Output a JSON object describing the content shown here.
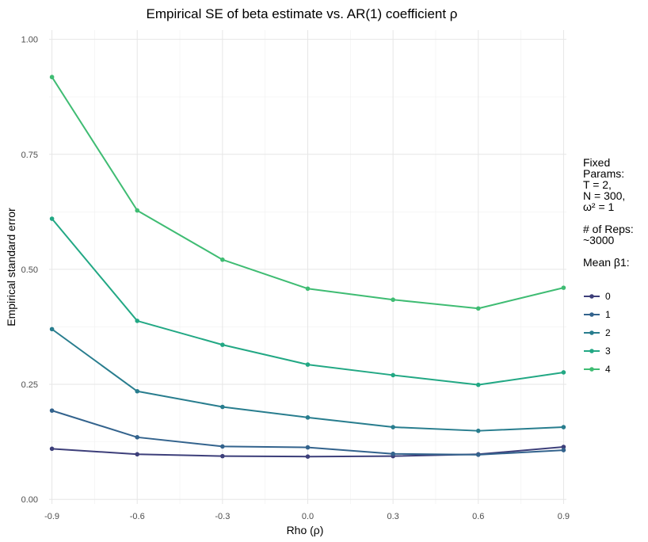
{
  "chart_data": {
    "type": "line",
    "title": "Empirical SE of beta estimate vs. AR(1) coefficient ρ",
    "xlabel": "Rho (ρ)",
    "ylabel": "Empirical standard error",
    "x": [
      -0.9,
      -0.6,
      -0.3,
      0.0,
      0.3,
      0.6,
      0.9
    ],
    "x_tick_labels": [
      "-0.9",
      "-0.6",
      "-0.3",
      "0.0",
      "0.3",
      "0.6",
      "0.9"
    ],
    "y_ticks": [
      0.0,
      0.25,
      0.5,
      0.75,
      1.0
    ],
    "y_tick_labels": [
      "0.00",
      "0.25",
      "0.50",
      "0.75",
      "1.00"
    ],
    "xlim": [
      -0.91,
      0.91
    ],
    "ylim": [
      -0.01,
      1.02
    ],
    "grid": true,
    "legend_position": "right",
    "legend_note": [
      "Fixed",
      "Params:",
      "T = 2,",
      "N = 300,",
      "ω² = 1",
      "",
      "# of Reps:",
      "~3000",
      "",
      "Mean β1:"
    ],
    "series": [
      {
        "name": "0",
        "color": "#3d3f7a",
        "values": [
          0.11,
          0.098,
          0.094,
          0.093,
          0.094,
          0.098,
          0.114
        ]
      },
      {
        "name": "1",
        "color": "#33638d",
        "values": [
          0.193,
          0.135,
          0.115,
          0.113,
          0.099,
          0.097,
          0.107
        ]
      },
      {
        "name": "2",
        "color": "#287d8e",
        "values": [
          0.37,
          0.235,
          0.201,
          0.178,
          0.157,
          0.149,
          0.157
        ]
      },
      {
        "name": "3",
        "color": "#22a884",
        "values": [
          0.61,
          0.388,
          0.336,
          0.293,
          0.27,
          0.249,
          0.276
        ]
      },
      {
        "name": "4",
        "color": "#3fbc73",
        "values": [
          0.918,
          0.628,
          0.521,
          0.458,
          0.434,
          0.415,
          0.46
        ]
      }
    ]
  }
}
